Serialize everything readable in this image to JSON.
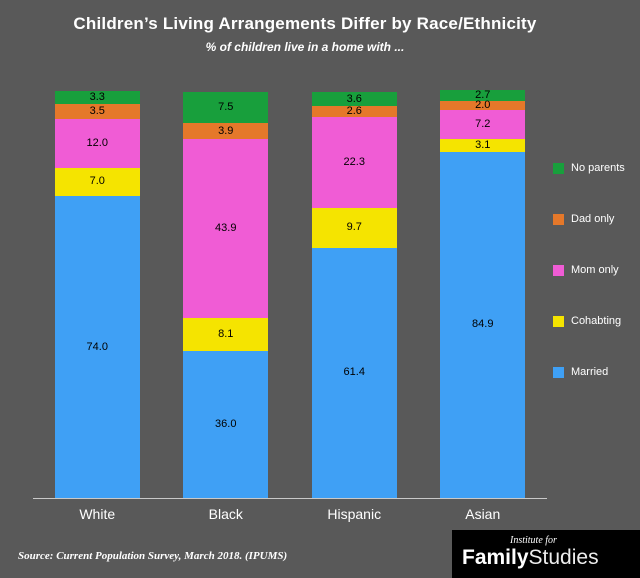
{
  "header": {
    "title": "Children’s Living Arrangements Differ by Race/Ethnicity",
    "subtitle": "% of children live in a home with ..."
  },
  "source_note": "Source: Current Population Survey, March 2018. (IPUMS)",
  "logo": {
    "top": "Institute for",
    "bold": "Family",
    "light": "Studies"
  },
  "colors": {
    "background": "#595959",
    "married": "#3FA0F5",
    "cohabting": "#F5E400",
    "mom_only": "#F05CD5",
    "dad_only": "#E5782A",
    "no_parents": "#189F3C",
    "baseline": "#C9C9C9",
    "text": "#FFFFFF",
    "value_label": "#000000"
  },
  "chart_data": {
    "type": "bar",
    "stacked": true,
    "title": "Children’s Living Arrangements Differ by Race/Ethnicity",
    "subtitle": "% of children live in a home with ...",
    "categories": [
      "White",
      "Black",
      "Hispanic",
      "Asian"
    ],
    "series": [
      {
        "name": "Married",
        "color": "#3FA0F5",
        "values": [
          74.0,
          36.0,
          61.4,
          84.9
        ]
      },
      {
        "name": "Cohabting",
        "color": "#F5E400",
        "values": [
          7.0,
          8.1,
          9.7,
          3.1
        ]
      },
      {
        "name": "Mom only",
        "color": "#F05CD5",
        "values": [
          12.0,
          43.9,
          22.3,
          7.2
        ]
      },
      {
        "name": "Dad only",
        "color": "#E5782A",
        "values": [
          3.5,
          3.9,
          2.6,
          2.0
        ]
      },
      {
        "name": "No parents",
        "color": "#189F3C",
        "values": [
          3.3,
          7.5,
          3.6,
          2.7
        ]
      }
    ],
    "legend_order": [
      "No parents",
      "Dad only",
      "Mom only",
      "Cohabting",
      "Married"
    ],
    "legend_position": "right",
    "ylim": [
      0,
      100
    ],
    "grid": false,
    "value_label_format": "one_decimal"
  }
}
